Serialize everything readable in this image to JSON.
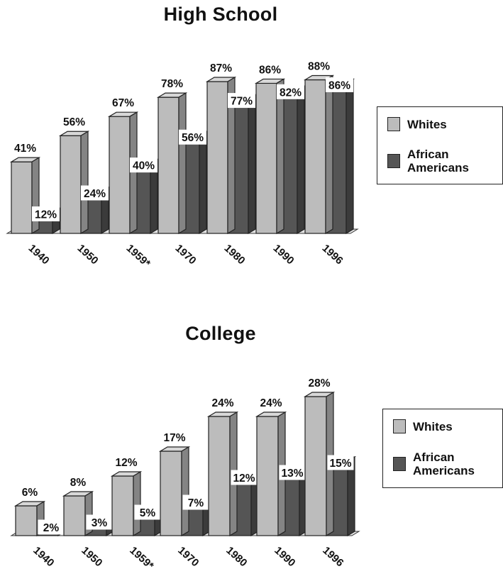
{
  "chart_data": [
    {
      "type": "bar",
      "title": "High School",
      "categories": [
        "1940",
        "1950",
        "1959*",
        "1970",
        "1980",
        "1990",
        "1996"
      ],
      "series": [
        {
          "name": "Whites",
          "values": [
            41,
            56,
            67,
            78,
            87,
            86,
            88
          ]
        },
        {
          "name": "African Americans",
          "values": [
            12,
            24,
            40,
            56,
            77,
            82,
            86
          ]
        }
      ],
      "value_labels": {
        "Whites": [
          "41%",
          "56%",
          "67%",
          "78%",
          "87%",
          "86%",
          "88%"
        ],
        "African Americans": [
          "12%",
          "24%",
          "40%",
          "56%",
          "77%",
          "82%",
          "86%"
        ]
      },
      "xlabel": "",
      "ylabel": "",
      "ylim": [
        0,
        100
      ],
      "legend_position": "right",
      "grid": false,
      "colors": {
        "Whites": "#bcbcbc",
        "African Americans": "#555555"
      }
    },
    {
      "type": "bar",
      "title": "College",
      "categories": [
        "1940",
        "1950",
        "1959*",
        "1970",
        "1980",
        "1990",
        "1996"
      ],
      "series": [
        {
          "name": "Whites",
          "values": [
            6,
            8,
            12,
            17,
            24,
            24,
            28
          ]
        },
        {
          "name": "African Americans",
          "values": [
            2,
            3,
            5,
            7,
            12,
            13,
            15
          ]
        }
      ],
      "value_labels": {
        "Whites": [
          "6%",
          "8%",
          "12%",
          "17%",
          "24%",
          "24%",
          "28%"
        ],
        "African Americans": [
          "2%",
          "3%",
          "5%",
          "7%",
          "12%",
          "13%",
          "15%"
        ]
      },
      "xlabel": "",
      "ylabel": "",
      "ylim": [
        0,
        30
      ],
      "legend_position": "right",
      "grid": false,
      "colors": {
        "Whites": "#bcbcbc",
        "African Americans": "#555555"
      }
    }
  ],
  "legend": {
    "whites_label": "Whites",
    "african_americans_label": "African\nAmericans"
  }
}
